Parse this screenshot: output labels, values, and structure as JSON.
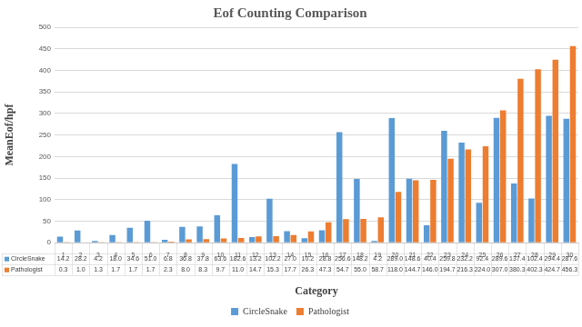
{
  "chart_data": {
    "type": "bar",
    "title": "Eof Counting Comparison",
    "x_label": "Category",
    "y_label": "MeanEof/hpf",
    "categories": [
      "1",
      "2",
      "3",
      "4",
      "5",
      "6",
      "7",
      "8",
      "9",
      "10",
      "11",
      "12",
      "13",
      "14",
      "15",
      "16",
      "17",
      "18",
      "19",
      "20",
      "21",
      "22",
      "23",
      "24",
      "25",
      "26",
      "27",
      "28",
      "29",
      "30"
    ],
    "series": [
      {
        "name": "CircleSnake",
        "color": "#5b9bd5",
        "values": [
          14.2,
          28.2,
          4.2,
          18.0,
          34.6,
          51.0,
          6.8,
          36.8,
          37.8,
          63.6,
          182.6,
          13.2,
          102.2,
          27.0,
          10.2,
          28.8,
          256.6,
          148.2,
          4.2,
          289.0,
          148.6,
          40.4,
          259.8,
          232.2,
          92.4,
          289.6,
          137.4,
          102.4,
          294.4,
          287.6
        ],
        "value_labels": [
          "14.2",
          "28.2",
          "4.2",
          "18.0",
          "34.6",
          "51.0",
          "6.8",
          "36.8",
          "37.8",
          "63.6",
          "182.6",
          "13.2",
          "102.2",
          "27.0",
          "10.2",
          "28.8",
          "256.6",
          "148.2",
          "4.2",
          "289.0",
          "148.6",
          "40.4",
          "259.8",
          "232.2",
          "92.4",
          "289.6",
          "137.4",
          "102.4",
          "294.4",
          "287.6"
        ]
      },
      {
        "name": "Pathologist",
        "color": "#ed7d31",
        "values": [
          0.3,
          1.0,
          1.3,
          1.7,
          1.7,
          1.7,
          2.3,
          8.0,
          8.3,
          9.7,
          11.0,
          14.7,
          15.3,
          17.7,
          26.3,
          47.3,
          54.7,
          55.0,
          58.7,
          118.0,
          144.7,
          146.0,
          194.7,
          216.3,
          224.0,
          307.0,
          380.3,
          402.3,
          424.7,
          456.3
        ],
        "value_labels": [
          "0.3",
          "1.0",
          "1.3",
          "1.7",
          "1.7",
          "1.7",
          "2.3",
          "8.0",
          "8.3",
          "9.7",
          "11.0",
          "14.7",
          "15.3",
          "17.7",
          "26.3",
          "47.3",
          "54.7",
          "55.0",
          "58.7",
          "118.0",
          "144.7",
          "146.0",
          "194.7",
          "216.3",
          "224.0",
          "307.0",
          "380.3",
          "402.3",
          "424.7",
          "456.3"
        ]
      }
    ],
    "ylim": [
      0,
      500
    ],
    "yticks": [
      0,
      50,
      100,
      150,
      200,
      250,
      300,
      350,
      400,
      450,
      500
    ],
    "grid": true,
    "legend": "bottom"
  }
}
